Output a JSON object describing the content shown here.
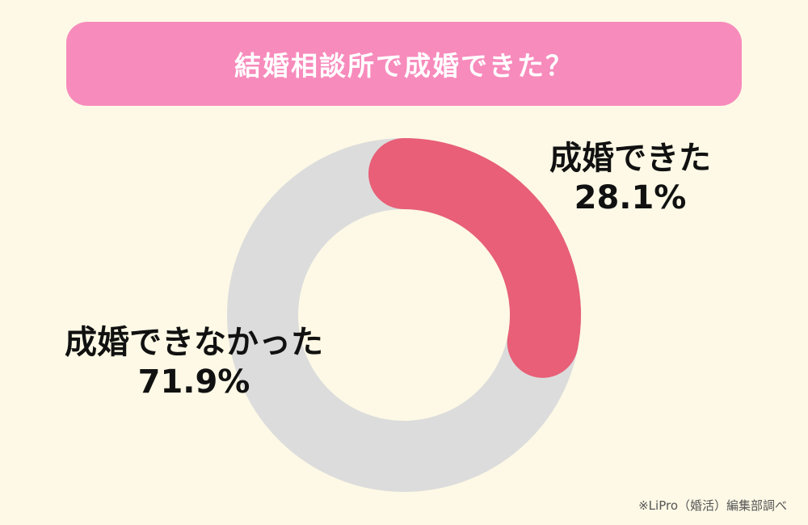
{
  "title": "結婚相談所で成婚できた？",
  "chart_data": {
    "type": "pie",
    "variant": "donut",
    "slices": [
      {
        "label": "成婚できた",
        "value": 28.1,
        "display": "28.1%",
        "color": "#e85f77"
      },
      {
        "label": "成婚できなかった",
        "value": 71.9,
        "display": "71.9%",
        "color": "#dcdcdc"
      }
    ]
  },
  "source": "※LiPro（婚活）編集部調べ"
}
